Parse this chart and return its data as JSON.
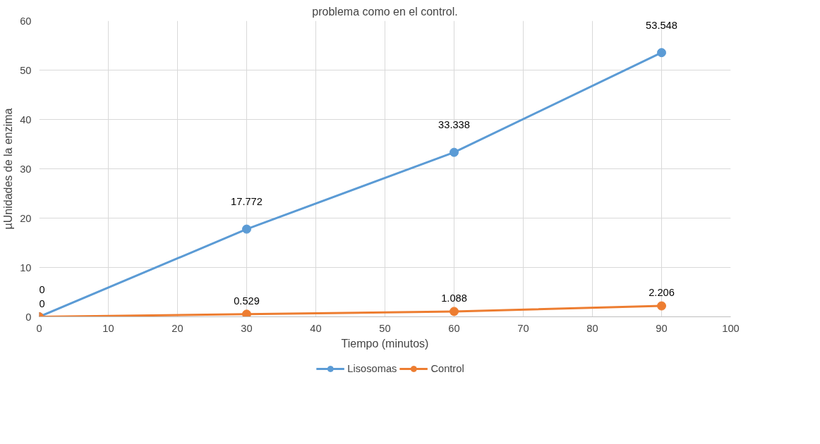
{
  "chart_data": {
    "type": "line",
    "title": "problema como en el control.",
    "xlabel": "Tiempo (minutos)",
    "ylabel": "µUnidades de la enzima",
    "x": [
      0,
      30,
      60,
      90
    ],
    "series": [
      {
        "name": "Lisosomas",
        "color": "#5b9bd5",
        "values": [
          0,
          17.772,
          33.338,
          53.548
        ]
      },
      {
        "name": "Control",
        "color": "#ed7d31",
        "values": [
          0,
          0.529,
          1.088,
          2.206
        ]
      }
    ],
    "xlim": [
      0,
      100
    ],
    "xticks": [
      0,
      10,
      20,
      30,
      40,
      50,
      60,
      70,
      80,
      90,
      100
    ],
    "ylim": [
      0,
      60
    ],
    "yticks": [
      0,
      10,
      20,
      30,
      40,
      50,
      60
    ],
    "grid": true,
    "legend": "bottom",
    "marker": "circle",
    "line_style": "solid",
    "data_labels": true
  }
}
